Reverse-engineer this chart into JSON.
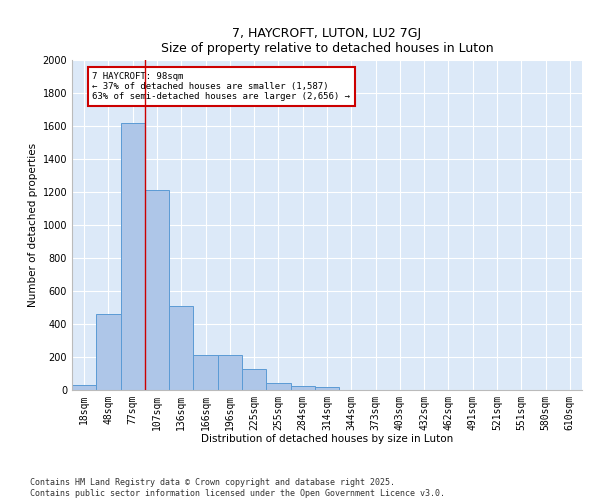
{
  "title1": "7, HAYCROFT, LUTON, LU2 7GJ",
  "title2": "Size of property relative to detached houses in Luton",
  "xlabel": "Distribution of detached houses by size in Luton",
  "ylabel": "Number of detached properties",
  "categories": [
    "18sqm",
    "48sqm",
    "77sqm",
    "107sqm",
    "136sqm",
    "166sqm",
    "196sqm",
    "225sqm",
    "255sqm",
    "284sqm",
    "314sqm",
    "344sqm",
    "373sqm",
    "403sqm",
    "432sqm",
    "462sqm",
    "491sqm",
    "521sqm",
    "551sqm",
    "580sqm",
    "610sqm"
  ],
  "values": [
    30,
    460,
    1620,
    1210,
    510,
    215,
    215,
    130,
    40,
    25,
    20,
    0,
    0,
    0,
    0,
    0,
    0,
    0,
    0,
    0,
    0
  ],
  "bar_color": "#aec6e8",
  "bar_edge_color": "#5b9bd5",
  "background_color": "#dce9f8",
  "grid_color": "#ffffff",
  "vline_x": 2.5,
  "vline_color": "#cc0000",
  "annotation_title": "7 HAYCROFT: 98sqm",
  "annotation_line1": "← 37% of detached houses are smaller (1,587)",
  "annotation_line2": "63% of semi-detached houses are larger (2,656) →",
  "annotation_box_color": "#cc0000",
  "ylim": [
    0,
    2000
  ],
  "yticks": [
    0,
    200,
    400,
    600,
    800,
    1000,
    1200,
    1400,
    1600,
    1800,
    2000
  ],
  "footer1": "Contains HM Land Registry data © Crown copyright and database right 2025.",
  "footer2": "Contains public sector information licensed under the Open Government Licence v3.0.",
  "title_fontsize": 9,
  "tick_fontsize": 7,
  "label_fontsize": 7.5,
  "footer_fontsize": 6
}
